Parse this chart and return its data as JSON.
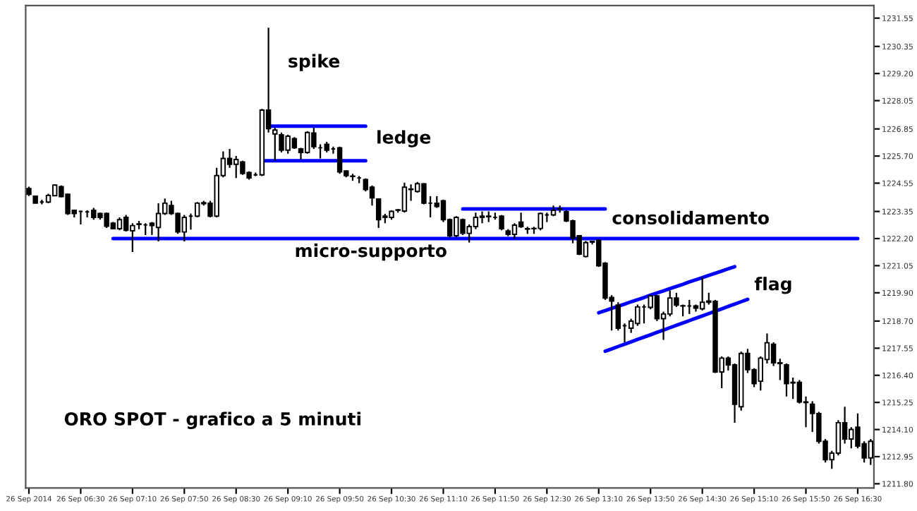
{
  "chart_data": {
    "type": "candlestick",
    "categories": [
      "26 Sep 2014",
      null,
      null,
      null,
      null,
      null,
      null,
      null,
      "26 Sep 06:30",
      null,
      null,
      null,
      null,
      null,
      null,
      null,
      "26 Sep 07:10",
      null,
      null,
      null,
      null,
      null,
      null,
      null,
      "26 Sep 07:50",
      null,
      null,
      null,
      null,
      null,
      null,
      null,
      "26 Sep 08:30",
      null,
      null,
      null,
      null,
      null,
      null,
      null,
      "26 Sep 09:10",
      null,
      null,
      null,
      null,
      null,
      null,
      null,
      "26 Sep 09:50",
      null,
      null,
      null,
      null,
      null,
      null,
      null,
      "26 Sep 10:30",
      null,
      null,
      null,
      null,
      null,
      null,
      null,
      "26 Sep 11:10",
      null,
      null,
      null,
      null,
      null,
      null,
      null,
      "26 Sep 11:50",
      null,
      null,
      null,
      null,
      null,
      null,
      null,
      "26 Sep 12:30",
      null,
      null,
      null,
      null,
      null,
      null,
      null,
      "26 Sep 13:10",
      null,
      null,
      null,
      null,
      null,
      null,
      null,
      "26 Sep 13:50",
      null,
      null,
      null,
      null,
      null,
      null,
      null,
      "26 Sep 14:30",
      null,
      null,
      null,
      null,
      null,
      null,
      null,
      "26 Sep 15:10",
      null,
      null,
      null,
      null,
      null,
      null,
      null,
      "26 Sep 15:50",
      null,
      null,
      null,
      null,
      null,
      null,
      null,
      "26 Sep 16:30",
      null,
      null
    ],
    "ohlc": [
      [
        1224.32,
        1224.4,
        1224.0,
        1224.08
      ],
      [
        1224.0,
        1224.0,
        1223.7,
        1223.7
      ],
      [
        1223.75,
        1223.85,
        1223.65,
        1223.75
      ],
      [
        1223.75,
        1224.1,
        1223.7,
        1224.03
      ],
      [
        1224.02,
        1224.5,
        1224.0,
        1224.47
      ],
      [
        1224.4,
        1224.45,
        1223.95,
        1223.98
      ],
      [
        1224.08,
        1224.1,
        1223.2,
        1223.26
      ],
      [
        1223.4,
        1223.4,
        1223.1,
        1223.26
      ],
      [
        1223.35,
        1223.38,
        1222.8,
        1223.35
      ],
      [
        1223.33,
        1223.4,
        1223.1,
        1223.33
      ],
      [
        1223.4,
        1223.5,
        1223.0,
        1223.1
      ],
      [
        1223.26,
        1223.3,
        1223.0,
        1223.1
      ],
      [
        1223.26,
        1223.3,
        1222.65,
        1222.72
      ],
      [
        1222.85,
        1222.9,
        1222.6,
        1222.62
      ],
      [
        1222.62,
        1223.1,
        1222.55,
        1223.0
      ],
      [
        1223.1,
        1223.2,
        1222.5,
        1222.55
      ],
      [
        1222.53,
        1222.85,
        1221.63,
        1222.75
      ],
      [
        1222.8,
        1222.95,
        1222.6,
        1222.82
      ],
      [
        1222.78,
        1222.85,
        1222.35,
        1222.78
      ],
      [
        1222.85,
        1222.9,
        1222.35,
        1222.75
      ],
      [
        1222.67,
        1223.7,
        1222.08,
        1223.26
      ],
      [
        1223.26,
        1223.9,
        1223.2,
        1223.7
      ],
      [
        1223.6,
        1223.8,
        1223.2,
        1223.26
      ],
      [
        1223.26,
        1223.3,
        1222.4,
        1222.48
      ],
      [
        1222.48,
        1223.2,
        1222.08,
        1223.1
      ],
      [
        1223.15,
        1223.26,
        1222.58,
        1223.15
      ],
      [
        1223.15,
        1223.75,
        1223.1,
        1223.7
      ],
      [
        1223.68,
        1223.8,
        1223.6,
        1223.72
      ],
      [
        1223.7,
        1223.8,
        1223.1,
        1223.15
      ],
      [
        1223.15,
        1225.2,
        1223.1,
        1224.87
      ],
      [
        1224.87,
        1225.9,
        1224.8,
        1225.6
      ],
      [
        1225.6,
        1226.0,
        1225.2,
        1225.35
      ],
      [
        1225.35,
        1225.7,
        1224.77,
        1225.55
      ],
      [
        1225.45,
        1225.5,
        1224.9,
        1224.96
      ],
      [
        1225.0,
        1225.05,
        1224.7,
        1224.77
      ],
      [
        1224.9,
        1225.0,
        1224.85,
        1224.9
      ],
      [
        1224.9,
        1227.7,
        1224.85,
        1227.65
      ],
      [
        1227.65,
        1231.14,
        1226.7,
        1226.86
      ],
      [
        1226.64,
        1226.9,
        1225.5,
        1226.8
      ],
      [
        1226.6,
        1226.7,
        1225.85,
        1225.95
      ],
      [
        1225.95,
        1226.6,
        1225.8,
        1226.54
      ],
      [
        1226.44,
        1226.5,
        1226.0,
        1226.05
      ],
      [
        1226.0,
        1226.05,
        1225.55,
        1225.85
      ],
      [
        1225.85,
        1226.75,
        1225.8,
        1226.7
      ],
      [
        1226.68,
        1226.9,
        1226.0,
        1226.1
      ],
      [
        1226.05,
        1226.2,
        1225.6,
        1226.05
      ],
      [
        1226.2,
        1226.3,
        1225.85,
        1225.95
      ],
      [
        1226.0,
        1226.1,
        1225.8,
        1226.0
      ],
      [
        1226.05,
        1226.1,
        1224.95,
        1225.03
      ],
      [
        1225.07,
        1225.1,
        1224.8,
        1224.87
      ],
      [
        1224.85,
        1224.95,
        1224.65,
        1224.83
      ],
      [
        1224.77,
        1224.85,
        1224.55,
        1224.77
      ],
      [
        1224.7,
        1224.75,
        1224.2,
        1224.28
      ],
      [
        1224.38,
        1224.45,
        1223.6,
        1223.93
      ],
      [
        1223.88,
        1223.9,
        1222.65,
        1223.0
      ],
      [
        1223.15,
        1223.25,
        1222.85,
        1223.1
      ],
      [
        1223.1,
        1223.4,
        1223.0,
        1223.35
      ],
      [
        1223.4,
        1223.45,
        1223.3,
        1223.42
      ],
      [
        1223.37,
        1224.57,
        1223.3,
        1224.38
      ],
      [
        1224.3,
        1224.5,
        1223.8,
        1224.28
      ],
      [
        1224.2,
        1224.6,
        1224.15,
        1224.53
      ],
      [
        1224.52,
        1224.55,
        1223.65,
        1223.7
      ],
      [
        1223.7,
        1224.0,
        1223.1,
        1223.7
      ],
      [
        1223.7,
        1224.0,
        1223.5,
        1223.56
      ],
      [
        1223.8,
        1223.85,
        1222.9,
        1223.0
      ],
      [
        1223.0,
        1223.05,
        1222.25,
        1222.32
      ],
      [
        1222.32,
        1223.15,
        1222.25,
        1223.1
      ],
      [
        1223.0,
        1223.05,
        1222.35,
        1222.42
      ],
      [
        1222.42,
        1222.8,
        1222.03,
        1222.71
      ],
      [
        1222.71,
        1223.3,
        1222.6,
        1223.1
      ],
      [
        1223.1,
        1223.35,
        1222.85,
        1223.15
      ],
      [
        1223.15,
        1223.35,
        1222.9,
        1223.13
      ],
      [
        1223.1,
        1223.3,
        1223.0,
        1223.1
      ],
      [
        1223.15,
        1223.2,
        1222.55,
        1222.62
      ],
      [
        1222.52,
        1222.6,
        1222.3,
        1222.38
      ],
      [
        1222.38,
        1222.85,
        1222.2,
        1222.77
      ],
      [
        1222.9,
        1223.3,
        1222.65,
        1222.71
      ],
      [
        1222.6,
        1222.7,
        1222.4,
        1222.62
      ],
      [
        1222.62,
        1222.7,
        1222.4,
        1222.63
      ],
      [
        1222.63,
        1223.3,
        1222.55,
        1223.26
      ],
      [
        1223.2,
        1223.3,
        1222.9,
        1223.2
      ],
      [
        1223.2,
        1223.6,
        1223.15,
        1223.4
      ],
      [
        1223.45,
        1223.6,
        1223.3,
        1223.46
      ],
      [
        1223.34,
        1223.4,
        1222.9,
        1222.95
      ],
      [
        1222.95,
        1223.0,
        1222.0,
        1222.22
      ],
      [
        1222.32,
        1222.35,
        1221.5,
        1221.54
      ],
      [
        1221.44,
        1222.1,
        1221.4,
        1222.03
      ],
      [
        1222.05,
        1222.1,
        1221.95,
        1222.08
      ],
      [
        1222.13,
        1222.15,
        1221.0,
        1221.05
      ],
      [
        1221.15,
        1221.2,
        1219.6,
        1219.68
      ],
      [
        1219.7,
        1219.8,
        1218.3,
        1219.55
      ],
      [
        1219.38,
        1219.5,
        1218.3,
        1218.4
      ],
      [
        1218.5,
        1218.6,
        1217.8,
        1218.5
      ],
      [
        1218.4,
        1218.8,
        1218.2,
        1218.7
      ],
      [
        1218.6,
        1219.4,
        1218.5,
        1219.3
      ],
      [
        1219.3,
        1219.4,
        1218.6,
        1219.3
      ],
      [
        1219.28,
        1219.8,
        1219.2,
        1219.77
      ],
      [
        1219.77,
        1219.8,
        1218.7,
        1218.8
      ],
      [
        1218.8,
        1219.1,
        1217.9,
        1219.0
      ],
      [
        1219.0,
        1220.0,
        1218.9,
        1219.68
      ],
      [
        1219.68,
        1219.9,
        1219.3,
        1219.38
      ],
      [
        1219.35,
        1219.4,
        1218.9,
        1219.34
      ],
      [
        1219.34,
        1219.6,
        1219.0,
        1219.34
      ],
      [
        1219.34,
        1219.4,
        1219.1,
        1219.25
      ],
      [
        1219.22,
        1220.56,
        1219.15,
        1219.5
      ],
      [
        1219.55,
        1219.9,
        1219.4,
        1219.5
      ],
      [
        1219.54,
        1219.6,
        1216.5,
        1216.54
      ],
      [
        1216.54,
        1217.2,
        1215.85,
        1217.13
      ],
      [
        1217.13,
        1217.2,
        1216.6,
        1216.84
      ],
      [
        1216.84,
        1216.9,
        1214.39,
        1215.17
      ],
      [
        1215.07,
        1217.4,
        1214.9,
        1217.33
      ],
      [
        1217.33,
        1217.52,
        1216.5,
        1216.64
      ],
      [
        1216.64,
        1216.7,
        1215.9,
        1216.05
      ],
      [
        1216.15,
        1217.2,
        1215.76,
        1217.13
      ],
      [
        1217.07,
        1218.17,
        1216.9,
        1217.78
      ],
      [
        1217.72,
        1217.8,
        1216.8,
        1216.93
      ],
      [
        1216.93,
        1217.1,
        1216.2,
        1216.9
      ],
      [
        1216.84,
        1216.9,
        1215.5,
        1216.05
      ],
      [
        1216.1,
        1216.3,
        1215.4,
        1216.08
      ],
      [
        1216.1,
        1216.2,
        1215.2,
        1215.27
      ],
      [
        1215.27,
        1215.5,
        1214.2,
        1215.25
      ],
      [
        1215.17,
        1215.3,
        1214.0,
        1214.78
      ],
      [
        1214.78,
        1214.85,
        1213.5,
        1213.6
      ],
      [
        1213.6,
        1213.7,
        1212.7,
        1212.82
      ],
      [
        1212.82,
        1213.2,
        1212.43,
        1213.1
      ],
      [
        1213.1,
        1214.5,
        1213.0,
        1214.39
      ],
      [
        1214.39,
        1215.07,
        1213.5,
        1213.7
      ],
      [
        1213.7,
        1214.2,
        1213.3,
        1214.1
      ],
      [
        1214.2,
        1214.78,
        1213.3,
        1213.4
      ],
      [
        1213.5,
        1213.6,
        1212.7,
        1212.9
      ],
      [
        1212.9,
        1213.7,
        1212.6,
        1213.6
      ]
    ],
    "series": [
      {
        "type": "line",
        "color": "#0000ff",
        "values": [
          null,
          null,
          null,
          null,
          null,
          null,
          null,
          null,
          null,
          null,
          null,
          null,
          null,
          null,
          null,
          null,
          null,
          null,
          null,
          null,
          null,
          null,
          null,
          null,
          null,
          null,
          null,
          null,
          null,
          null,
          null,
          null,
          null,
          null,
          null,
          null,
          null,
          1226.97,
          1226.97,
          1226.97,
          1226.97,
          1226.97,
          1226.97,
          1226.97,
          1226.97,
          1226.97,
          1226.97,
          1226.97,
          1226.97,
          1226.97,
          1226.97,
          1226.97,
          1226.97,
          null,
          null,
          null,
          null,
          null,
          null,
          null,
          null,
          null,
          null,
          null,
          null,
          null,
          null,
          null,
          null,
          null,
          null,
          null,
          null,
          null,
          null,
          null,
          null,
          null,
          null,
          null,
          null,
          null,
          null,
          null,
          null,
          null,
          null,
          null,
          null,
          null,
          null,
          null,
          null,
          null,
          null,
          null,
          null,
          null,
          null,
          null,
          null,
          null,
          null,
          null,
          null,
          null,
          null,
          null,
          null,
          null,
          null,
          null,
          null,
          null,
          null,
          null,
          null,
          null,
          null,
          null,
          null,
          null,
          null,
          null,
          null,
          null,
          null,
          null,
          null,
          null,
          null
        ]
      },
      {
        "type": "line",
        "color": "#0000ff",
        "values": [
          null,
          null,
          null,
          null,
          null,
          null,
          null,
          null,
          null,
          null,
          null,
          null,
          null,
          null,
          null,
          null,
          null,
          null,
          null,
          null,
          null,
          null,
          null,
          null,
          null,
          null,
          null,
          null,
          null,
          null,
          null,
          null,
          null,
          null,
          null,
          null,
          1225.5,
          1225.5,
          1225.5,
          1225.5,
          1225.5,
          1225.5,
          1225.5,
          1225.5,
          1225.5,
          1225.5,
          1225.5,
          1225.5,
          1225.5,
          1225.5,
          1225.5,
          1225.5,
          1225.5,
          null,
          null,
          null,
          null,
          null,
          null,
          null,
          null,
          null,
          null,
          null,
          null,
          null,
          null,
          null,
          null,
          null,
          null,
          null,
          null,
          null,
          null,
          null,
          null,
          null,
          null,
          null,
          null,
          null,
          null,
          null,
          null,
          null,
          null,
          null,
          null,
          null,
          null,
          null,
          null,
          null,
          null,
          null,
          null,
          null,
          null,
          null,
          null,
          null,
          null,
          null,
          null,
          null,
          null,
          null,
          null,
          null,
          null,
          null,
          null,
          null,
          null,
          null,
          null,
          null,
          null,
          null,
          null,
          null,
          null,
          null,
          null,
          null,
          null,
          null,
          null,
          null,
          null
        ]
      },
      {
        "type": "line",
        "color": "#0000ff",
        "values": [
          null,
          null,
          null,
          null,
          null,
          null,
          null,
          null,
          null,
          null,
          null,
          null,
          null,
          1222.2,
          1222.2,
          1222.2,
          1222.2,
          1222.2,
          1222.2,
          1222.2,
          1222.2,
          1222.2,
          1222.2,
          1222.2,
          1222.2,
          1222.2,
          1222.2,
          1222.2,
          1222.2,
          1222.2,
          1222.2,
          1222.2,
          1222.2,
          1222.2,
          1222.2,
          1222.2,
          1222.2,
          1222.2,
          1222.2,
          1222.2,
          1222.2,
          1222.2,
          1222.2,
          1222.2,
          1222.2,
          1222.2,
          1222.2,
          1222.2,
          1222.2,
          1222.2,
          1222.2,
          1222.2,
          1222.2,
          1222.2,
          1222.2,
          1222.2,
          1222.2,
          1222.2,
          1222.2,
          1222.2,
          1222.2,
          1222.2,
          1222.2,
          1222.2,
          1222.2,
          1222.2,
          1222.2,
          1222.2,
          1222.2,
          1222.2,
          1222.2,
          1222.2,
          1222.2,
          1222.2,
          1222.2,
          1222.2,
          1222.2,
          1222.2,
          1222.2,
          1222.2,
          1222.2,
          1222.2,
          1222.2,
          1222.2,
          1222.2,
          1222.2,
          1222.2,
          1222.2,
          1222.2,
          1222.2,
          1222.2,
          1222.2,
          1222.2,
          1222.2,
          1222.2,
          1222.2,
          1222.2,
          1222.2,
          1222.2,
          1222.2,
          1222.2,
          1222.2,
          1222.2,
          1222.2,
          1222.2,
          1222.2,
          1222.2,
          1222.2,
          1222.2,
          1222.2,
          1222.2,
          1222.2,
          1222.2,
          1222.2,
          1222.2,
          1222.2,
          1222.2,
          1222.2,
          1222.2,
          1222.2,
          1222.2,
          1222.2,
          1222.2,
          1222.2,
          1222.2,
          1222.2,
          1222.2,
          1222.2,
          1222.2,
          null,
          null
        ]
      },
      {
        "type": "line",
        "color": "#0000ff",
        "values": [
          null,
          null,
          null,
          null,
          null,
          null,
          null,
          null,
          null,
          null,
          null,
          null,
          null,
          null,
          null,
          null,
          null,
          null,
          null,
          null,
          null,
          null,
          null,
          null,
          null,
          null,
          null,
          null,
          null,
          null,
          null,
          null,
          null,
          null,
          null,
          null,
          null,
          null,
          null,
          null,
          null,
          null,
          null,
          null,
          null,
          null,
          null,
          null,
          null,
          null,
          null,
          null,
          null,
          null,
          null,
          null,
          null,
          null,
          null,
          null,
          null,
          null,
          null,
          null,
          null,
          null,
          null,
          1223.46,
          1223.46,
          1223.46,
          1223.46,
          1223.46,
          1223.46,
          1223.46,
          1223.46,
          1223.46,
          1223.46,
          1223.46,
          1223.46,
          1223.46,
          1223.46,
          1223.46,
          1223.46,
          1223.46,
          1223.46,
          1223.46,
          1223.46,
          1223.46,
          1223.46,
          1223.46,
          null,
          null,
          null,
          null,
          null,
          null,
          null,
          null,
          null,
          null,
          null,
          null,
          null,
          null,
          null,
          null,
          null,
          null,
          null,
          null,
          null,
          null,
          null,
          null,
          null,
          null,
          null,
          null,
          null,
          null,
          null,
          null,
          null,
          null,
          null,
          null,
          null,
          null,
          null,
          null,
          null
        ]
      },
      {
        "type": "line",
        "color": "#0000ff",
        "values": [
          null,
          null,
          null,
          null,
          null,
          null,
          null,
          null,
          null,
          null,
          null,
          null,
          null,
          null,
          null,
          null,
          null,
          null,
          null,
          null,
          null,
          null,
          null,
          null,
          null,
          null,
          null,
          null,
          null,
          null,
          null,
          null,
          null,
          null,
          null,
          null,
          null,
          null,
          null,
          null,
          null,
          null,
          null,
          null,
          null,
          null,
          null,
          null,
          null,
          null,
          null,
          null,
          null,
          null,
          null,
          null,
          null,
          null,
          null,
          null,
          null,
          null,
          null,
          null,
          null,
          null,
          null,
          null,
          null,
          null,
          null,
          null,
          null,
          null,
          null,
          null,
          null,
          null,
          null,
          null,
          null,
          null,
          null,
          null,
          null,
          null,
          null,
          null,
          1219.05,
          1219.14,
          1219.24,
          1219.33,
          1219.42,
          1219.52,
          1219.61,
          1219.7,
          1219.8,
          1219.89,
          1219.98,
          1220.08,
          1220.17,
          1220.26,
          1220.36,
          1220.45,
          1220.54,
          1220.64,
          1220.73,
          1220.82,
          1220.92,
          1221.01,
          null,
          null,
          null,
          null,
          null,
          null,
          null,
          null,
          null,
          null,
          null,
          null,
          null,
          null,
          null,
          null,
          null,
          null,
          null,
          null,
          null
        ]
      },
      {
        "type": "line",
        "color": "#0000ff",
        "values": [
          null,
          null,
          null,
          null,
          null,
          null,
          null,
          null,
          null,
          null,
          null,
          null,
          null,
          null,
          null,
          null,
          null,
          null,
          null,
          null,
          null,
          null,
          null,
          null,
          null,
          null,
          null,
          null,
          null,
          null,
          null,
          null,
          null,
          null,
          null,
          null,
          null,
          null,
          null,
          null,
          null,
          null,
          null,
          null,
          null,
          null,
          null,
          null,
          null,
          null,
          null,
          null,
          null,
          null,
          null,
          null,
          null,
          null,
          null,
          null,
          null,
          null,
          null,
          null,
          null,
          null,
          null,
          null,
          null,
          null,
          null,
          null,
          null,
          null,
          null,
          null,
          null,
          null,
          null,
          null,
          null,
          null,
          null,
          null,
          null,
          null,
          null,
          null,
          null,
          1217.42,
          1217.52,
          1217.62,
          1217.72,
          1217.82,
          1217.92,
          1218.02,
          1218.12,
          1218.22,
          1218.32,
          1218.42,
          1218.52,
          1218.62,
          1218.72,
          1218.82,
          1218.92,
          1219.02,
          1219.12,
          1219.22,
          1219.32,
          1219.42,
          1219.52,
          1219.62,
          null,
          null,
          null,
          null,
          null,
          null,
          null,
          null,
          null,
          null,
          null,
          null,
          null,
          null,
          null,
          null,
          null,
          null,
          null
        ]
      }
    ],
    "annotations": [
      "spike",
      "ledge",
      "consolidamento",
      "flag",
      "micro-supporto",
      "ORO SPOT - grafico a 5 minuti"
    ],
    "ylim": [
      1211.62,
      1232.08
    ],
    "yticks": [
      1231.55,
      1230.35,
      {
        "value": 1229.2,
        "label": "1229.20"
      },
      1228.05,
      1226.85,
      {
        "value": 1225.7,
        "label": "1225.70"
      },
      1224.55,
      1223.35,
      {
        "value": 1222.2,
        "label": "1222.20"
      },
      1221.05,
      {
        "value": 1219.9,
        "label": "1219.90"
      },
      {
        "value": 1218.7,
        "label": "1218.70"
      },
      1217.55,
      {
        "value": 1216.4,
        "label": "1216.40"
      },
      1215.25,
      {
        "value": 1214.1,
        "label": "1214.10"
      },
      1212.95,
      {
        "value": 1211.8,
        "label": "1211.80"
      }
    ]
  }
}
